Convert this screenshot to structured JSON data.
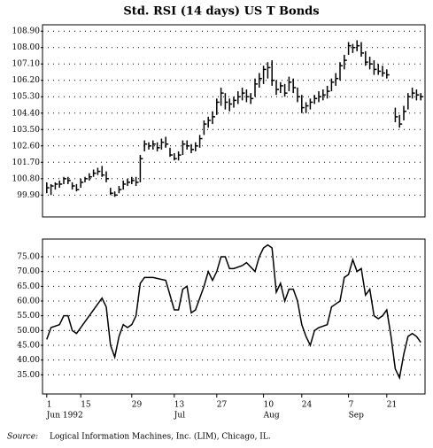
{
  "chart_data": [
    {
      "type": "ohlc",
      "title": "Std. RSI (14 days) US T Bonds",
      "x": [
        1,
        2,
        3,
        4,
        5,
        6,
        7,
        8,
        9,
        10,
        11,
        12,
        13,
        14,
        15,
        16,
        17,
        18,
        19,
        20,
        21,
        22,
        23,
        24,
        25,
        26,
        27,
        28,
        29,
        30,
        31,
        32,
        33,
        34,
        35,
        36,
        37,
        38,
        39,
        40,
        41,
        42,
        43,
        44,
        45,
        46,
        47,
        48,
        49,
        50,
        51,
        52,
        53,
        54,
        55,
        56,
        57,
        58,
        59,
        60,
        61,
        62,
        63,
        64,
        65,
        66,
        67,
        68,
        69,
        70,
        71,
        72,
        73,
        74,
        75,
        76,
        77,
        78,
        79,
        80,
        81,
        83,
        84,
        85,
        86,
        87,
        88,
        89
      ],
      "high": [
        100.6,
        100.5,
        100.6,
        100.7,
        100.9,
        100.9,
        100.6,
        100.5,
        100.8,
        100.9,
        101.1,
        101.3,
        101.4,
        101.5,
        101.2,
        100.3,
        100.1,
        100.4,
        100.7,
        100.8,
        100.9,
        100.9,
        102.1,
        102.9,
        102.8,
        102.9,
        102.8,
        103.0,
        103.1,
        102.5,
        102.2,
        102.3,
        102.9,
        102.9,
        102.7,
        102.8,
        103.2,
        104.0,
        104.2,
        104.5,
        105.2,
        105.8,
        105.5,
        105.2,
        105.3,
        105.6,
        105.8,
        105.7,
        105.5,
        106.3,
        106.6,
        107.0,
        107.2,
        107.3,
        106.2,
        106.1,
        106.0,
        106.4,
        106.3,
        105.8,
        105.4,
        105.0,
        105.2,
        105.4,
        105.6,
        105.7,
        105.9,
        106.3,
        106.6,
        107.2,
        107.6,
        108.3,
        108.2,
        108.4,
        108.3,
        107.8,
        107.5,
        107.3,
        107.1,
        107.0,
        106.8,
        104.7,
        104.3,
        104.8,
        105.5,
        105.8,
        105.7,
        105.5
      ],
      "low": [
        100.0,
        99.9,
        100.2,
        100.3,
        100.5,
        100.5,
        100.2,
        100.1,
        100.3,
        100.6,
        100.7,
        100.9,
        101.0,
        100.9,
        100.6,
        99.9,
        99.8,
        100.0,
        100.2,
        100.4,
        100.5,
        100.4,
        100.6,
        102.3,
        102.4,
        102.4,
        102.3,
        102.4,
        102.5,
        102.0,
        101.8,
        101.8,
        102.1,
        102.4,
        102.2,
        102.3,
        102.5,
        103.2,
        103.6,
        103.8,
        104.3,
        104.8,
        104.6,
        104.5,
        104.7,
        104.9,
        105.1,
        105.0,
        104.9,
        105.3,
        105.8,
        106.0,
        106.3,
        105.9,
        105.4,
        105.5,
        105.3,
        105.6,
        105.5,
        105.0,
        104.4,
        104.4,
        104.6,
        104.9,
        105.0,
        105.1,
        105.2,
        105.6,
        105.9,
        106.2,
        106.8,
        107.6,
        107.7,
        107.8,
        107.5,
        107.0,
        106.8,
        106.5,
        106.5,
        106.4,
        106.3,
        103.9,
        103.6,
        104.0,
        104.6,
        105.2,
        105.1,
        105.1
      ],
      "close": [
        100.3,
        100.4,
        100.5,
        100.5,
        100.8,
        100.7,
        100.4,
        100.2,
        100.6,
        100.8,
        100.9,
        101.1,
        101.2,
        101.0,
        100.8,
        100.0,
        99.9,
        100.2,
        100.5,
        100.6,
        100.7,
        100.6,
        101.9,
        102.7,
        102.6,
        102.7,
        102.5,
        102.8,
        102.7,
        102.1,
        101.9,
        102.1,
        102.7,
        102.6,
        102.4,
        102.6,
        103.0,
        103.8,
        104.0,
        104.2,
        105.0,
        105.5,
        105.0,
        104.9,
        105.1,
        105.3,
        105.5,
        105.3,
        105.2,
        106.0,
        106.3,
        106.8,
        106.9,
        106.2,
        105.7,
        105.9,
        105.5,
        106.1,
        105.8,
        105.3,
        104.7,
        104.8,
        105.0,
        105.2,
        105.3,
        105.4,
        105.6,
        106.1,
        106.3,
        107.0,
        107.3,
        108.1,
        108.0,
        108.1,
        107.7,
        107.2,
        107.1,
        106.8,
        106.7,
        106.6,
        106.5,
        104.2,
        103.8,
        104.5,
        105.3,
        105.5,
        105.4,
        105.3
      ],
      "xlim": [
        0,
        90
      ],
      "ylim": [
        98.7,
        109.25
      ],
      "yticks": [
        {
          "value": 108.9,
          "label": "108.90"
        },
        {
          "value": 108.0,
          "label": "108.00"
        },
        {
          "value": 107.1,
          "label": "107.10"
        },
        {
          "value": 106.2,
          "label": "106.20"
        },
        {
          "value": 105.3,
          "label": "105.30"
        },
        {
          "value": 104.4,
          "label": "104.40"
        },
        {
          "value": 103.5,
          "label": "103.50"
        },
        {
          "value": 102.6,
          "label": "102.60"
        },
        {
          "value": 101.7,
          "label": "101.70"
        },
        {
          "value": 100.8,
          "label": "100.80"
        },
        {
          "value": 99.9,
          "label": "99.90"
        }
      ],
      "grid": true,
      "color": "#000000"
    },
    {
      "type": "line",
      "x": [
        1,
        2,
        4,
        5,
        6,
        7,
        8,
        10,
        11,
        13,
        14,
        15,
        16,
        17,
        18,
        19,
        20,
        21,
        22,
        23,
        24,
        26,
        29,
        30,
        31,
        32,
        33,
        34,
        35,
        36,
        38,
        39,
        40,
        41,
        42,
        43,
        44,
        45,
        47,
        48,
        50,
        51,
        52,
        53,
        54,
        55,
        56,
        57,
        58,
        59,
        60,
        61,
        62,
        63,
        64,
        65,
        67,
        68,
        70,
        71,
        72,
        73,
        74,
        75,
        76,
        77,
        78,
        79,
        80,
        81,
        82,
        83,
        84,
        85,
        86,
        87,
        88,
        89
      ],
      "values": [
        47,
        51,
        52,
        55,
        55,
        50,
        49,
        53,
        55,
        59,
        61,
        58,
        45,
        41,
        48,
        52,
        51,
        52,
        55,
        66,
        68,
        68,
        67,
        62,
        57,
        57,
        64,
        65,
        56,
        57,
        65,
        70,
        67,
        70,
        75,
        75,
        71,
        71,
        72,
        73,
        70,
        75,
        78,
        79,
        78,
        63,
        66,
        60,
        64,
        64,
        60,
        52,
        48,
        45,
        50,
        51,
        52,
        58,
        60,
        68,
        69,
        74,
        70,
        71,
        62,
        64,
        55,
        54,
        55,
        57,
        48,
        37,
        34,
        42,
        48,
        49,
        48,
        46
      ],
      "xlim": [
        0,
        90
      ],
      "ylim": [
        28.5,
        81
      ],
      "yticks": [
        {
          "value": 75,
          "label": "75.00"
        },
        {
          "value": 70,
          "label": "70.00"
        },
        {
          "value": 65,
          "label": "65.00"
        },
        {
          "value": 60,
          "label": "60.00"
        },
        {
          "value": 55,
          "label": "55.00"
        },
        {
          "value": 50,
          "label": "50.00"
        },
        {
          "value": 45,
          "label": "45.00"
        },
        {
          "value": 40,
          "label": "40.00"
        },
        {
          "value": 35,
          "label": "35.00"
        }
      ],
      "xticks": [
        {
          "value": 1,
          "label": "1"
        },
        {
          "value": 9,
          "label": "15"
        },
        {
          "value": 21,
          "label": "29"
        },
        {
          "value": 31,
          "label": "13"
        },
        {
          "value": 41,
          "label": "27"
        },
        {
          "value": 52,
          "label": "10"
        },
        {
          "value": 61,
          "label": "24"
        },
        {
          "value": 72,
          "label": "7"
        },
        {
          "value": 81,
          "label": "21"
        }
      ],
      "month_labels": [
        {
          "value": 1,
          "label": "Jun 1992"
        },
        {
          "value": 31,
          "label": "Jul"
        },
        {
          "value": 52,
          "label": "Aug"
        },
        {
          "value": 72,
          "label": "Sep"
        }
      ],
      "grid": true,
      "color": "#000000",
      "source_label": "Source:",
      "source": "Logical Information Machines, Inc. (LIM), Chicago, IL."
    }
  ]
}
